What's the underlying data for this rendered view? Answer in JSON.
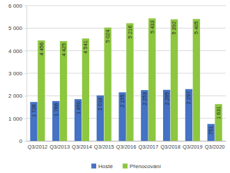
{
  "chart_data": {
    "type": "bar",
    "categories": [
      "Q3/2012",
      "Q3/2013",
      "Q3/2014",
      "Q3/2015",
      "Q3/2016",
      "Q3/2017",
      "Q3/2018",
      "Q3/2019",
      "Q3/2020"
    ],
    "series": [
      {
        "name": "Hosté",
        "color": "#4472c4",
        "values": [
          1726,
          1766,
          1850,
          2018,
          2155,
          2253,
          2265,
          2297,
          751
        ],
        "value_labels": [
          "1 726",
          "1 766",
          "1 850",
          "2 018",
          "2 155",
          "2 253",
          "2 265",
          "2 297",
          "751"
        ]
      },
      {
        "name": "Přenocování",
        "color": "#8dc63f",
        "values": [
          4456,
          4425,
          4541,
          5024,
          5216,
          5433,
          5392,
          5405,
          1631
        ],
        "value_labels": [
          "4 456",
          "4 425",
          "4 541",
          "5 024",
          "5 216",
          "5 433",
          "5 392",
          "5 405",
          "1 631"
        ]
      }
    ],
    "ylim": [
      0,
      6000
    ],
    "yticks": [
      0,
      {
        "value": 1000,
        "label": "1 000"
      },
      {
        "value": 2000,
        "label": "2 000"
      },
      {
        "value": 3000,
        "label": "3 000"
      },
      {
        "value": 4000,
        "label": "4 000"
      },
      {
        "value": 5000,
        "label": "5 000"
      },
      {
        "value": 6000,
        "label": "6 000"
      }
    ],
    "grid": true,
    "data_labels": true,
    "legend": "bottom"
  }
}
